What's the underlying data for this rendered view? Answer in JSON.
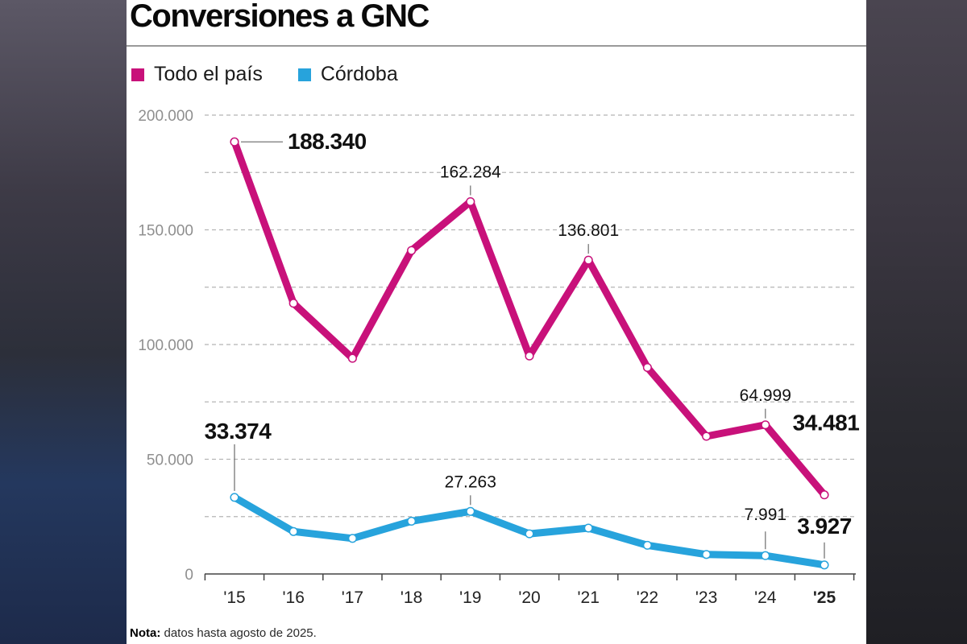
{
  "title": "Conversiones a GNC",
  "note": {
    "label": "Nota:",
    "text": " datos hasta agosto de 2025."
  },
  "colors": {
    "pais": "#c8117a",
    "cordoba": "#27a3dc",
    "text": "#1a1a1a",
    "axis": "#8a8a8a"
  },
  "chart_data": {
    "type": "line",
    "title": "Conversiones a GNC",
    "categories": [
      "'15",
      "'16",
      "'17",
      "'18",
      "'19",
      "'20",
      "'21",
      "'22",
      "'23",
      "'24",
      "'25"
    ],
    "ylim": [
      0,
      200000
    ],
    "yticks": [
      0,
      50000,
      100000,
      150000,
      200000
    ],
    "ytick_labels": [
      "0",
      "50.000",
      "100.000",
      "150.000",
      "200.000"
    ],
    "grid": true,
    "legend_position": "top-left",
    "series": [
      {
        "name": "Todo el país",
        "color": "#c8117a",
        "values": [
          188340,
          118000,
          94000,
          141000,
          162284,
          95000,
          136801,
          90000,
          60000,
          64999,
          34481
        ],
        "labels": [
          {
            "index": 0,
            "text": "188.340",
            "bold": true
          },
          {
            "index": 4,
            "text": "162.284",
            "bold": false
          },
          {
            "index": 6,
            "text": "136.801",
            "bold": false
          },
          {
            "index": 9,
            "text": "64.999",
            "bold": false
          },
          {
            "index": 10,
            "text": "34.481",
            "bold": true
          }
        ]
      },
      {
        "name": "Córdoba",
        "color": "#27a3dc",
        "values": [
          33374,
          18500,
          15500,
          23000,
          27263,
          17500,
          20000,
          12500,
          8500,
          7991,
          3927
        ],
        "labels": [
          {
            "index": 0,
            "text": "33.374",
            "bold": true
          },
          {
            "index": 4,
            "text": "27.263",
            "bold": false
          },
          {
            "index": 9,
            "text": "7.991",
            "bold": false
          },
          {
            "index": 10,
            "text": "3.927",
            "bold": true
          }
        ]
      }
    ]
  }
}
